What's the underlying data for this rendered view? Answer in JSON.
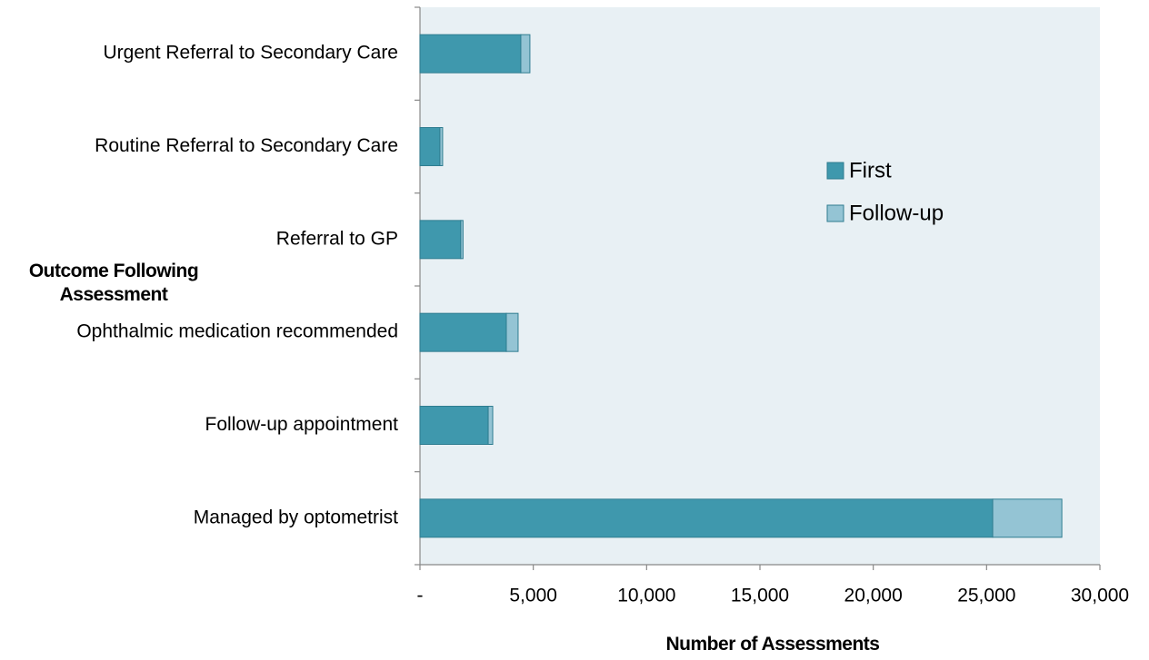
{
  "chart_data": {
    "type": "stacked_barh",
    "x_label": "Number of Assessments",
    "y_label": "Outcome Following Assessment",
    "categories": [
      "Urgent Referral to Secondary Care",
      "Routine Referral to Secondary Care",
      "Referral to GP",
      "Ophthalmic medication recommended",
      "Follow-up appointment",
      "Managed by optometrist"
    ],
    "series": [
      {
        "name": "First",
        "color": "#3f98ad",
        "values": [
          4450,
          880,
          1800,
          3810,
          3010,
          25270
        ]
      },
      {
        "name": "Follow-up",
        "color": "#94c4d4",
        "values": [
          400,
          120,
          100,
          520,
          200,
          3050
        ]
      }
    ],
    "xlim": [
      0,
      30000
    ],
    "xticks": [
      {
        "value": 0,
        "label": "-"
      },
      {
        "value": 5000,
        "label": "5,000"
      },
      {
        "value": 10000,
        "label": "10,000"
      },
      {
        "value": 15000,
        "label": "15,000"
      },
      {
        "value": 20000,
        "label": "20,000"
      },
      {
        "value": 25000,
        "label": "25,000"
      },
      {
        "value": 30000,
        "label": "30,000"
      }
    ],
    "plot_background": "#e8f0f4"
  }
}
